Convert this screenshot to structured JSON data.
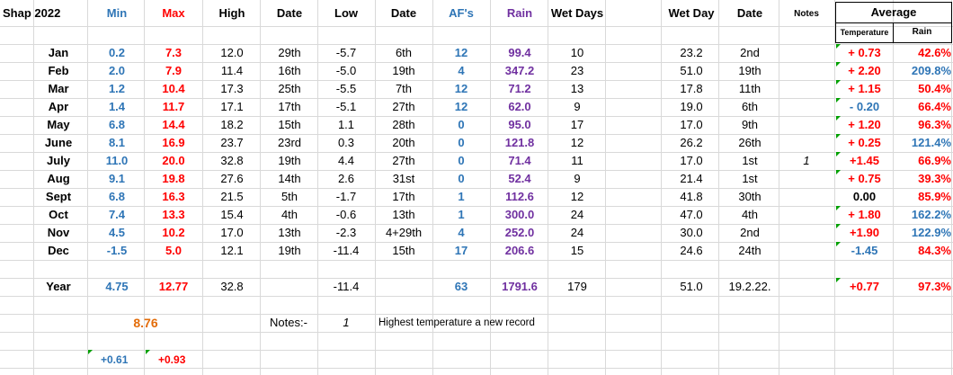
{
  "header": {
    "title": "Shap 2022",
    "min": "Min",
    "max": "Max",
    "high": "High",
    "date1": "Date",
    "low": "Low",
    "date2": "Date",
    "afs": "AF's",
    "rain": "Rain",
    "wet_days": "Wet Days",
    "wet_day": "Wet Day",
    "date3": "Date",
    "notes": "Notes",
    "average": "Average",
    "temperature": "Temperature",
    "avg_rain": "Rain"
  },
  "rows": [
    {
      "month": "Jan",
      "min": "0.2",
      "max": "7.3",
      "high": "12.0",
      "high_date": "29th",
      "low": "-5.7",
      "low_date": "6th",
      "afs": "12",
      "rain": "99.4",
      "wet_days": "10",
      "wet_day": "23.2",
      "wet_date": "2nd",
      "note": "",
      "avg_temp": "+ 0.73",
      "avg_rain": "42.6%"
    },
    {
      "month": "Feb",
      "min": "2.0",
      "max": "7.9",
      "high": "11.4",
      "high_date": "16th",
      "low": "-5.0",
      "low_date": "19th",
      "afs": "4",
      "rain": "347.2",
      "wet_days": "23",
      "wet_day": "51.0",
      "wet_date": "19th",
      "note": "",
      "avg_temp": "+ 2.20",
      "avg_rain": "209.8%"
    },
    {
      "month": "Mar",
      "min": "1.2",
      "max": "10.4",
      "high": "17.3",
      "high_date": "25th",
      "low": "-5.5",
      "low_date": "7th",
      "afs": "12",
      "rain": "71.2",
      "wet_days": "13",
      "wet_day": "17.8",
      "wet_date": "11th",
      "note": "",
      "avg_temp": "+ 1.15",
      "avg_rain": "50.4%"
    },
    {
      "month": "Apr",
      "min": "1.4",
      "max": "11.7",
      "high": "17.1",
      "high_date": "17th",
      "low": "-5.1",
      "low_date": "27th",
      "afs": "12",
      "rain": "62.0",
      "wet_days": "9",
      "wet_day": "19.0",
      "wet_date": "6th",
      "note": "",
      "avg_temp": "- 0.20",
      "avg_rain": "66.4%"
    },
    {
      "month": "May",
      "min": "6.8",
      "max": "14.4",
      "high": "18.2",
      "high_date": "15th",
      "low": "1.1",
      "low_date": "28th",
      "afs": "0",
      "rain": "95.0",
      "wet_days": "17",
      "wet_day": "17.0",
      "wet_date": "9th",
      "note": "",
      "avg_temp": "+ 1.20",
      "avg_rain": "96.3%"
    },
    {
      "month": "June",
      "min": "8.1",
      "max": "16.9",
      "high": "23.7",
      "high_date": "23rd",
      "low": "0.3",
      "low_date": "20th",
      "afs": "0",
      "rain": "121.8",
      "wet_days": "12",
      "wet_day": "26.2",
      "wet_date": "26th",
      "note": "",
      "avg_temp": "+ 0.25",
      "avg_rain": "121.4%"
    },
    {
      "month": "July",
      "min": "11.0",
      "max": "20.0",
      "high": "32.8",
      "high_date": "19th",
      "low": "4.4",
      "low_date": "27th",
      "afs": "0",
      "rain": "71.4",
      "wet_days": "11",
      "wet_day": "17.0",
      "wet_date": "1st",
      "note": "1",
      "avg_temp": "+1.45",
      "avg_rain": "66.9%"
    },
    {
      "month": "Aug",
      "min": "9.1",
      "max": "19.8",
      "high": "27.6",
      "high_date": "14th",
      "low": "2.6",
      "low_date": "31st",
      "afs": "0",
      "rain": "52.4",
      "wet_days": "9",
      "wet_day": "21.4",
      "wet_date": "1st",
      "note": "",
      "avg_temp": "+ 0.75",
      "avg_rain": "39.3%"
    },
    {
      "month": "Sept",
      "min": "6.8",
      "max": "16.3",
      "high": "21.5",
      "high_date": "5th",
      "low": "-1.7",
      "low_date": "17th",
      "afs": "1",
      "rain": "112.6",
      "wet_days": "12",
      "wet_day": "41.8",
      "wet_date": "30th",
      "note": "",
      "avg_temp": "0.00",
      "avg_rain": "85.9%"
    },
    {
      "month": "Oct",
      "min": "7.4",
      "max": "13.3",
      "high": "15.4",
      "high_date": "4th",
      "low": "-0.6",
      "low_date": "13th",
      "afs": "1",
      "rain": "300.0",
      "wet_days": "24",
      "wet_day": "47.0",
      "wet_date": "4th",
      "note": "",
      "avg_temp": "+ 1.80",
      "avg_rain": "162.2%"
    },
    {
      "month": "Nov",
      "min": "4.5",
      "max": "10.2",
      "high": "17.0",
      "high_date": "13th",
      "low": "-2.3",
      "low_date": "4+29th",
      "afs": "4",
      "rain": "252.0",
      "wet_days": "24",
      "wet_day": "30.0",
      "wet_date": "2nd",
      "note": "",
      "avg_temp": "+1.90",
      "avg_rain": "122.9%"
    },
    {
      "month": "Dec",
      "min": "-1.5",
      "max": "5.0",
      "high": "12.1",
      "high_date": "19th",
      "low": "-11.4",
      "low_date": "15th",
      "afs": "17",
      "rain": "206.6",
      "wet_days": "15",
      "wet_day": "24.6",
      "wet_date": "24th",
      "note": "",
      "avg_temp": "-1.45",
      "avg_rain": "84.3%"
    }
  ],
  "year": {
    "label": "Year",
    "min": "4.75",
    "max": "12.77",
    "high": "32.8",
    "low": "-11.4",
    "afs": "63",
    "rain": "1791.6",
    "wet_days": "179",
    "wet_day": "51.0",
    "wet_date": "19.2.22.",
    "avg_temp": "+0.77",
    "avg_rain": "97.3%"
  },
  "footer": {
    "mean": "8.76",
    "notes_label": "Notes:-",
    "note_num": "1",
    "note_text": "Highest temperature a new record",
    "min_diff": "+0.61",
    "max_diff": "+0.93"
  },
  "colors": {
    "min": "#2e75b6",
    "max": "#ff0000",
    "afs": "#2e75b6",
    "rain": "#7030a0",
    "mean": "#e36c09",
    "comment_marker": "#00a000"
  }
}
